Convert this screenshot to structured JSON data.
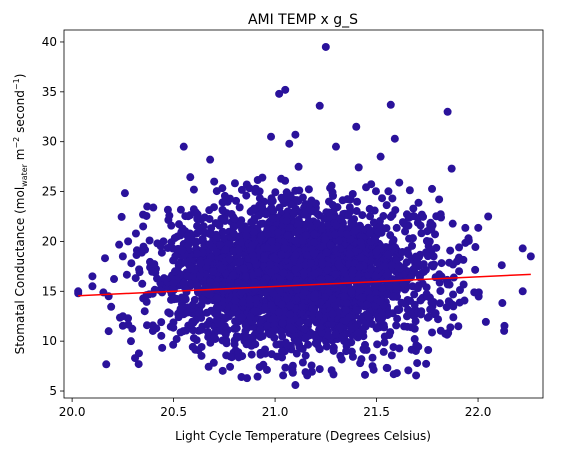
{
  "chart_data": {
    "type": "scatter",
    "title": "AMI TEMP x g_S",
    "xlabel": "Light Cycle Temperature (Degrees Celsius)",
    "ylabel": {
      "prefix": "Stomatal Conductance (mol",
      "sub": "water",
      "mid": " m",
      "sup1": "−2",
      "mid2": " second",
      "sup2": "−1",
      "suffix": ")"
    },
    "xlim": [
      19.96,
      22.32
    ],
    "ylim": [
      4.3,
      41.2
    ],
    "xticks": [
      20.0,
      20.5,
      21.0,
      21.5,
      22.0
    ],
    "xtick_labels": [
      "20.0",
      "20.5",
      "21.0",
      "21.5",
      "22.0"
    ],
    "yticks": [
      5,
      10,
      15,
      20,
      25,
      30,
      35,
      40
    ],
    "ytick_labels": [
      "5",
      "10",
      "15",
      "20",
      "25",
      "30",
      "35",
      "40"
    ],
    "grid": false,
    "point_color": "#2a129b",
    "trend_color": "#ff0000",
    "cloud": {
      "x_mean": 21.1,
      "x_sd": 0.33,
      "y_mean": 16.5,
      "y_sd": 3.6,
      "n": 3200
    },
    "series": [
      {
        "kind": "points",
        "x": [
          20.03,
          20.03,
          20.1,
          20.1,
          20.18,
          20.18,
          20.25,
          20.25,
          20.29,
          20.31,
          20.33,
          20.35,
          20.37,
          20.4,
          20.42,
          20.55,
          20.6,
          20.68,
          20.98,
          21.02,
          21.05,
          21.07,
          21.1,
          21.22,
          21.25,
          21.57,
          21.59,
          21.85,
          21.87,
          22.22,
          22.26,
          22.22,
          21.1,
          21.15,
          21.22,
          21.48,
          21.6,
          21.7,
          21.4,
          21.3,
          22.05,
          21.52,
          21.35,
          20.7
        ],
        "y": [
          15.0,
          14.8,
          16.5,
          15.5,
          14.5,
          11.0,
          18.5,
          12.5,
          10.0,
          8.3,
          17.2,
          21.5,
          23.5,
          23.4,
          19.8,
          29.5,
          25.2,
          28.2,
          30.5,
          34.8,
          35.2,
          29.8,
          30.7,
          33.6,
          39.5,
          33.7,
          30.3,
          33.0,
          27.3,
          19.3,
          18.5,
          15.0,
          5.6,
          6.9,
          7.2,
          7.5,
          6.8,
          7.8,
          31.5,
          29.5,
          22.5,
          28.5,
          9.0,
          26.0
        ]
      },
      {
        "kind": "trend",
        "x": [
          20.03,
          22.26
        ],
        "y": [
          14.55,
          16.7
        ]
      }
    ]
  }
}
